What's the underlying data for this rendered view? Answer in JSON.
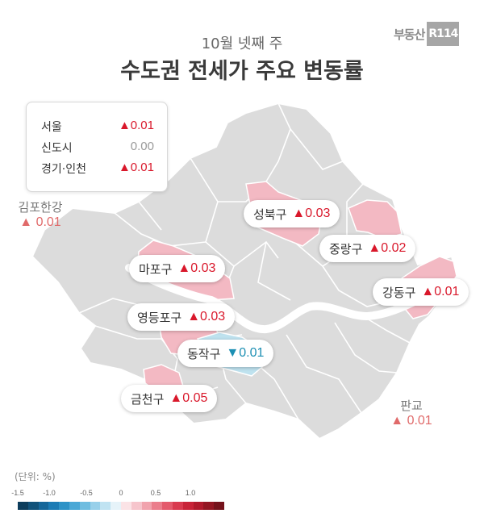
{
  "logo": {
    "text": "부동산",
    "mark": "R114"
  },
  "header": {
    "subtitle": "10월 넷째 주",
    "title": "수도권 전세가 주요 변동률"
  },
  "summary": [
    {
      "name": "서울",
      "value": "▲0.01",
      "dir": "up"
    },
    {
      "name": "신도시",
      "value": "0.00",
      "dir": "flat"
    },
    {
      "name": "경기·인천",
      "value": "▲0.01",
      "dir": "up"
    }
  ],
  "outer_labels": {
    "gimpo": {
      "name": "김포한강",
      "value": "▲ 0.01"
    },
    "pangyo": {
      "name": "판교",
      "value": "▲ 0.01"
    }
  },
  "districts": {
    "seongbuk": {
      "name": "성북구",
      "value": "▲0.03"
    },
    "jungnang": {
      "name": "중랑구",
      "value": "▲0.02"
    },
    "mapo": {
      "name": "마포구",
      "value": "▲0.03"
    },
    "gangdong": {
      "name": "강동구",
      "value": "▲0.01"
    },
    "yeongdeungpo": {
      "name": "영등포구",
      "value": "▲0.03"
    },
    "dongjak": {
      "name": "동작구",
      "value": "▼0.01"
    },
    "geumcheon": {
      "name": "금천구",
      "value": "▲0.05"
    }
  },
  "scale": {
    "unit": "(단위: %)",
    "ticks": [
      "-1.5",
      "-1.0",
      "-0.5",
      "0",
      "0.5",
      "1.0"
    ],
    "colors": [
      "#0d3d5c",
      "#11527a",
      "#16679a",
      "#1c7cb5",
      "#2d93c7",
      "#4aa8d6",
      "#6fbde0",
      "#98d0ea",
      "#c0e3f2",
      "#e6f3f9",
      "#fbe3e6",
      "#f6c5cc",
      "#f1a3ad",
      "#eb7e8c",
      "#e45a6c",
      "#d93a4f",
      "#c82338",
      "#b01a2c",
      "#931622",
      "#75121b"
    ]
  },
  "colors": {
    "up": "#d9182b",
    "down": "#1c8fb3",
    "rise_fill": "#f3b9c3",
    "fall_fill": "#bfe2ef",
    "base_fill": "#dcdcdc"
  }
}
